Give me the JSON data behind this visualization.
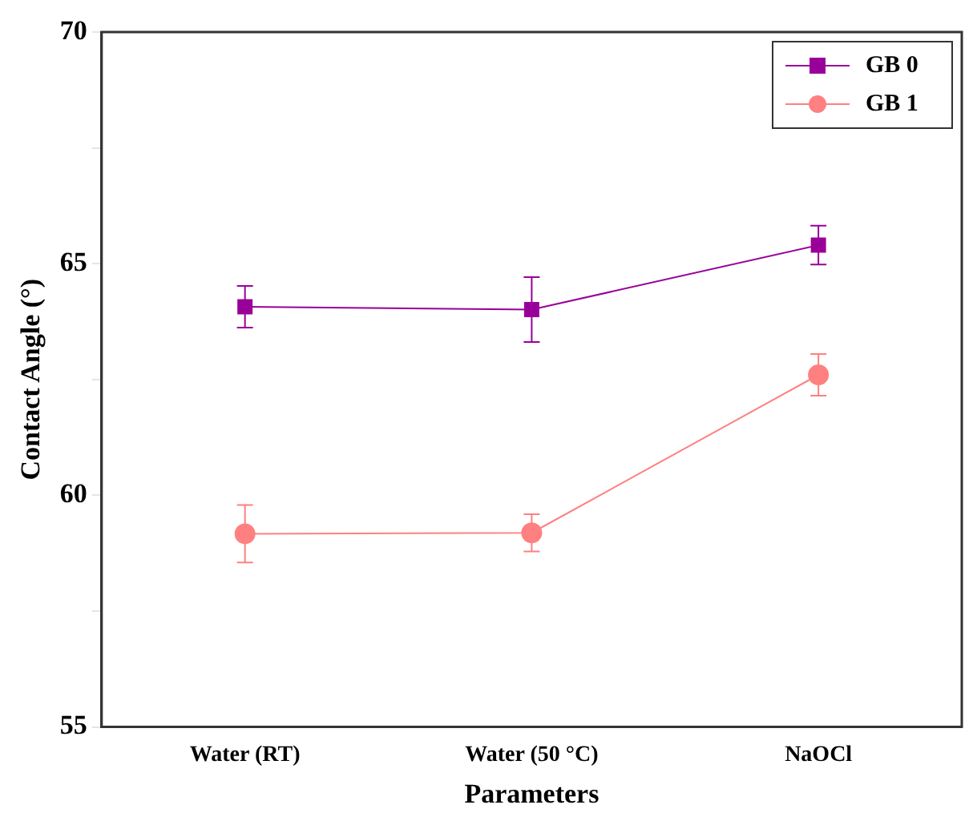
{
  "chart_data": {
    "type": "line",
    "xlabel": "Parameters",
    "ylabel": "Contact Angle (°)",
    "categories": [
      "Water (RT)",
      "Water (50 °C)",
      "NaOCl"
    ],
    "series": [
      {
        "name": "GB 0",
        "color": "#990099",
        "marker": "square",
        "values": [
          64.07,
          64.01,
          65.4
        ],
        "errors": [
          0.45,
          0.7,
          0.42
        ]
      },
      {
        "name": "GB 1",
        "color": "#ff8080",
        "marker": "circle",
        "values": [
          59.17,
          59.19,
          62.6
        ],
        "errors": [
          0.62,
          0.4,
          0.45
        ]
      }
    ],
    "ylim": [
      55,
      70
    ],
    "yticks": [
      55,
      {
        "value": 57.5,
        "label": null
      },
      60,
      {
        "value": 62.5,
        "label": null
      },
      65,
      {
        "value": 67.5,
        "label": null
      },
      70
    ],
    "grid": false,
    "legend": "top right"
  }
}
